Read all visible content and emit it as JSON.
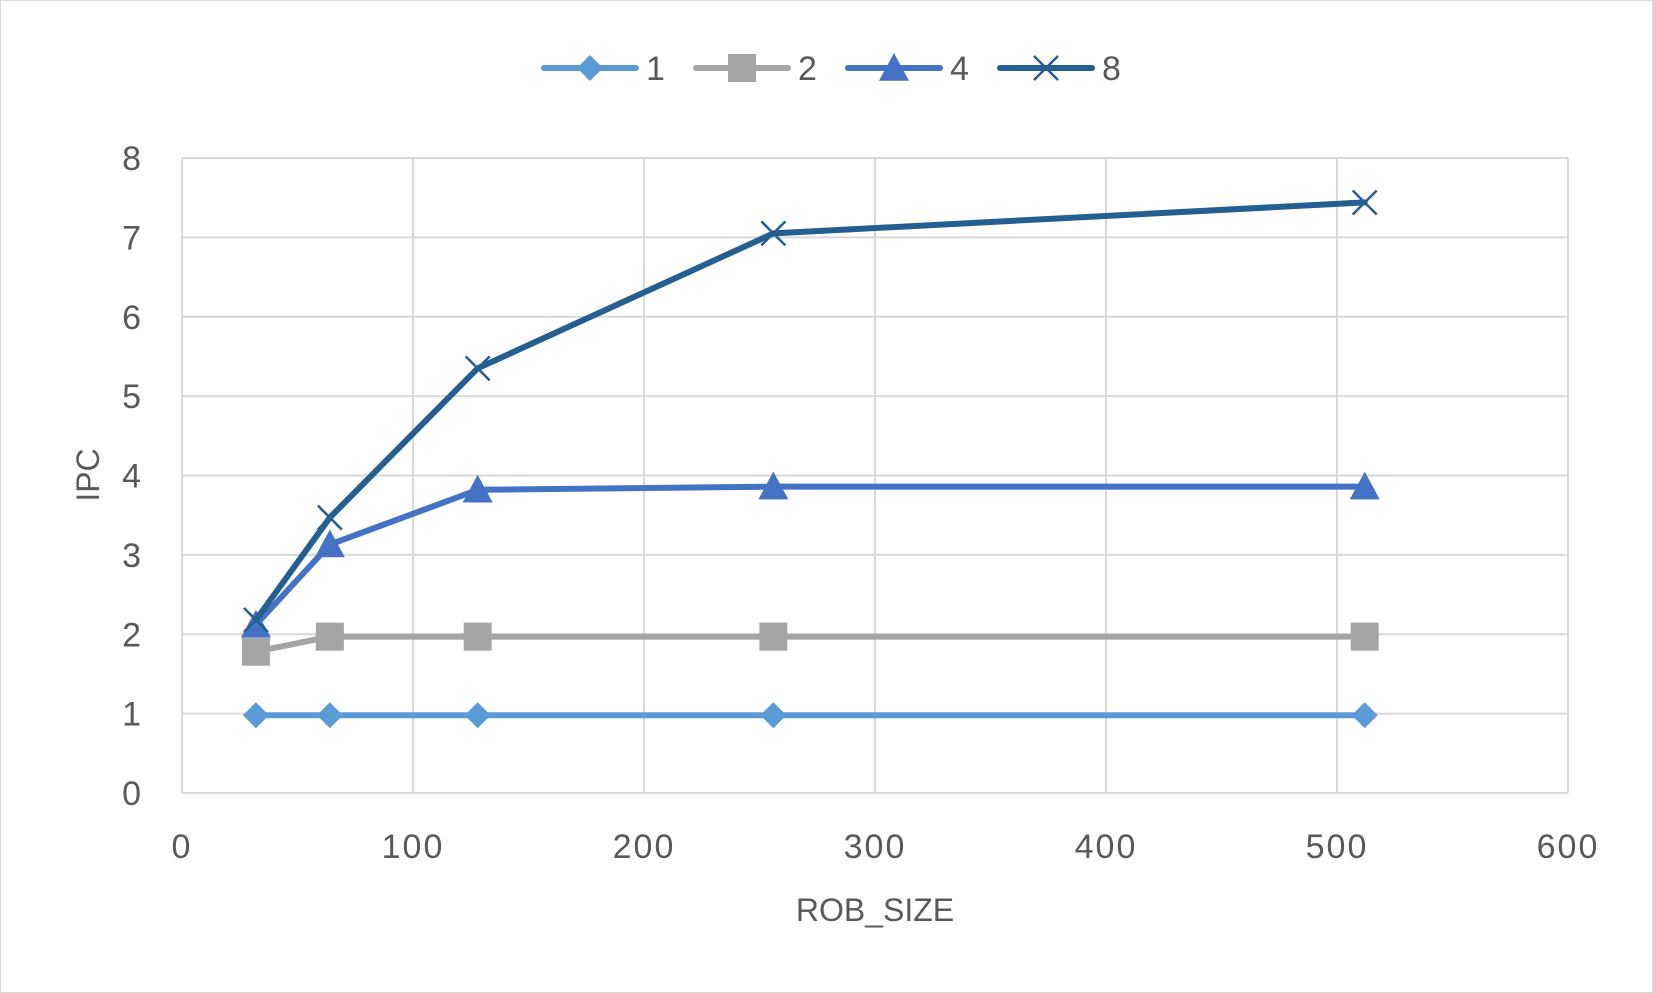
{
  "chart_data": {
    "type": "line",
    "title": "",
    "xlabel": "ROB_SIZE",
    "ylabel": "IPC",
    "xlim": [
      0,
      600
    ],
    "ylim": [
      0,
      8
    ],
    "x_ticks": [
      0,
      100,
      200,
      300,
      400,
      500,
      600
    ],
    "y_ticks": [
      0,
      1,
      2,
      3,
      4,
      5,
      6,
      7,
      8
    ],
    "grid": true,
    "legend_position": "top-center",
    "x": [
      32,
      64,
      128,
      256,
      512
    ],
    "series": [
      {
        "name": "1",
        "values": [
          0.98,
          0.98,
          0.98,
          0.98,
          0.98
        ],
        "color": "#5b9bd5",
        "marker": "diamond"
      },
      {
        "name": "2",
        "values": [
          1.78,
          1.97,
          1.97,
          1.97,
          1.97
        ],
        "color": "#a5a5a5",
        "marker": "square"
      },
      {
        "name": "4",
        "values": [
          2.12,
          3.13,
          3.82,
          3.86,
          3.86
        ],
        "color": "#4472c4",
        "marker": "triangle"
      },
      {
        "name": "8",
        "values": [
          2.18,
          3.47,
          5.35,
          7.05,
          7.44
        ],
        "color": "#255e91",
        "marker": "x"
      }
    ]
  }
}
